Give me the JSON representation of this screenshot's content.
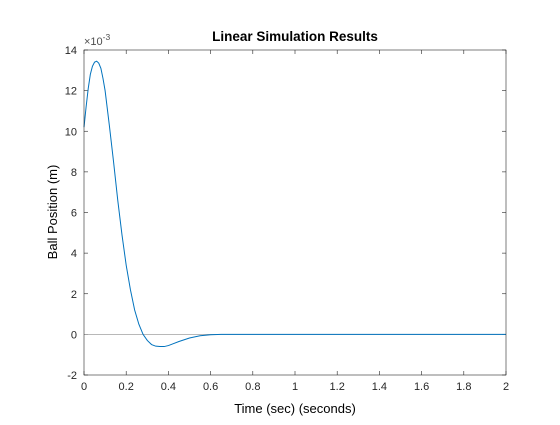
{
  "chart_data": {
    "type": "line",
    "title": "Linear Simulation Results",
    "xlabel": "Time (sec) (seconds)",
    "ylabel": "Ball Position (m)",
    "y_exponent_label": "×10",
    "y_exponent_power": "-3",
    "xlim": [
      0,
      2
    ],
    "ylim": [
      -2,
      14
    ],
    "x_ticks": [
      "0",
      "0.2",
      "0.4",
      "0.6",
      "0.8",
      "1",
      "1.2",
      "1.4",
      "1.6",
      "1.8",
      "2"
    ],
    "y_ticks": [
      "-2",
      "0",
      "2",
      "4",
      "6",
      "8",
      "10",
      "12",
      "14"
    ],
    "grid": false,
    "reference_line_y": 0,
    "series": [
      {
        "color": "#0072BD",
        "x": [
          0,
          0.01,
          0.02,
          0.03,
          0.04,
          0.05,
          0.06,
          0.07,
          0.08,
          0.09,
          0.1,
          0.12,
          0.14,
          0.16,
          0.18,
          0.2,
          0.22,
          0.24,
          0.26,
          0.28,
          0.3,
          0.32,
          0.34,
          0.36,
          0.38,
          0.4,
          0.42,
          0.45,
          0.5,
          0.55,
          0.6,
          0.65,
          0.7,
          0.8,
          1.0,
          1.5,
          2.0
        ],
        "y": [
          10.2,
          11.2,
          12.1,
          12.8,
          13.2,
          13.4,
          13.45,
          13.35,
          13.1,
          12.6,
          12.0,
          10.3,
          8.5,
          6.6,
          4.9,
          3.4,
          2.2,
          1.2,
          0.5,
          0.0,
          -0.3,
          -0.5,
          -0.58,
          -0.6,
          -0.6,
          -0.55,
          -0.47,
          -0.35,
          -0.18,
          -0.07,
          -0.02,
          0.0,
          0.0,
          0.0,
          0.0,
          0.0,
          0.0
        ]
      }
    ]
  }
}
